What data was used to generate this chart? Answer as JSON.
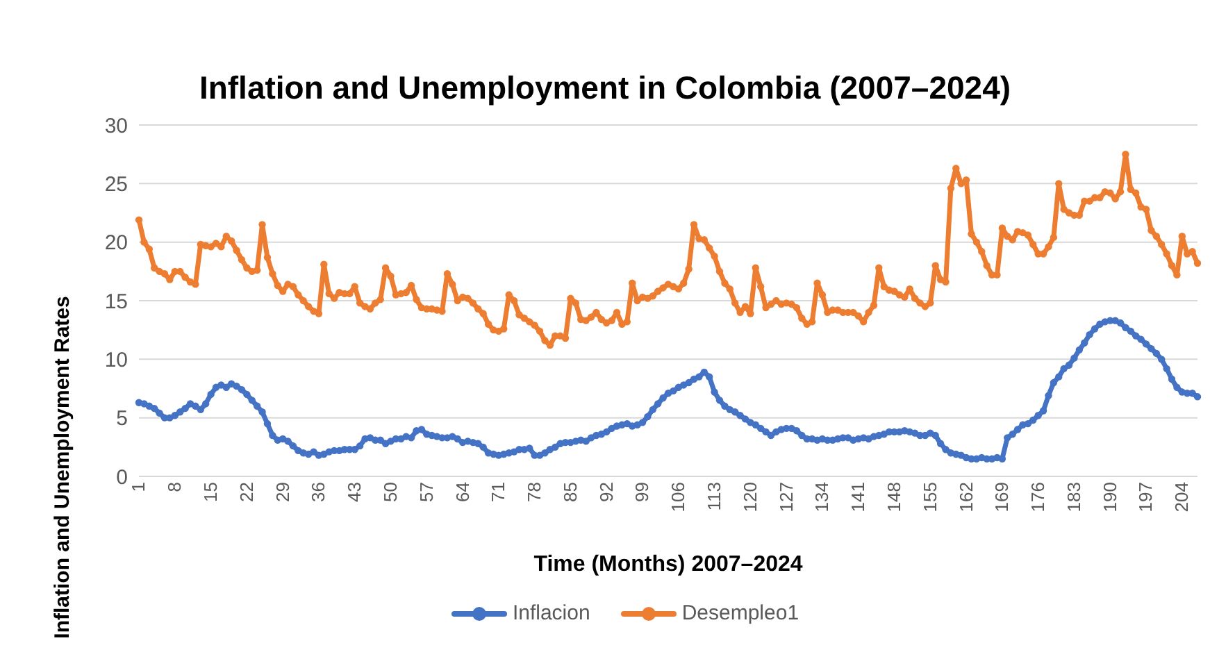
{
  "chart_data": {
    "type": "line",
    "title": "Inflation and Unemployment in Colombia (2007–2024)",
    "xlabel": "Time (Months) 2007–2024",
    "ylabel": "Inflation and Unemployment Rates",
    "categories": [
      "1",
      null,
      null,
      null,
      null,
      null,
      null,
      "8",
      null,
      null,
      null,
      null,
      null,
      null,
      "15",
      null,
      null,
      null,
      null,
      null,
      null,
      "22",
      null,
      null,
      null,
      null,
      null,
      null,
      "29",
      null,
      null,
      null,
      null,
      null,
      null,
      "36",
      null,
      null,
      null,
      null,
      null,
      null,
      "43",
      null,
      null,
      null,
      null,
      null,
      null,
      "50",
      null,
      null,
      null,
      null,
      null,
      null,
      "57",
      null,
      null,
      null,
      null,
      null,
      null,
      "64",
      null,
      null,
      null,
      null,
      null,
      null,
      "71",
      null,
      null,
      null,
      null,
      null,
      null,
      "78",
      null,
      null,
      null,
      null,
      null,
      null,
      "85",
      null,
      null,
      null,
      null,
      null,
      null,
      "92",
      null,
      null,
      null,
      null,
      null,
      null,
      "99",
      null,
      null,
      null,
      null,
      null,
      null,
      "106",
      null,
      null,
      null,
      null,
      null,
      null,
      "113",
      null,
      null,
      null,
      null,
      null,
      null,
      "120",
      null,
      null,
      null,
      null,
      null,
      null,
      "127",
      null,
      null,
      null,
      null,
      null,
      null,
      "134",
      null,
      null,
      null,
      null,
      null,
      null,
      "141",
      null,
      null,
      null,
      null,
      null,
      null,
      "148",
      null,
      null,
      null,
      null,
      null,
      null,
      "155",
      null,
      null,
      null,
      null,
      null,
      null,
      "162",
      null,
      null,
      null,
      null,
      null,
      null,
      "169",
      null,
      null,
      null,
      null,
      null,
      null,
      "176",
      null,
      null,
      null,
      null,
      null,
      null,
      "183",
      null,
      null,
      null,
      null,
      null,
      null,
      "190",
      null,
      null,
      null,
      null,
      null,
      null,
      "197",
      null,
      null,
      null,
      null,
      null,
      null,
      "204",
      null,
      null,
      null
    ],
    "series": [
      {
        "name": "Inflacion",
        "color": "#4472c4",
        "values": [
          6.3,
          6.2,
          6.0,
          5.8,
          5.4,
          5.0,
          5.0,
          5.2,
          5.5,
          5.8,
          6.2,
          6.0,
          5.7,
          6.2,
          7.0,
          7.6,
          7.8,
          7.6,
          7.9,
          7.7,
          7.4,
          7.0,
          6.5,
          6.0,
          5.5,
          4.5,
          3.5,
          3.1,
          3.2,
          3.0,
          2.6,
          2.2,
          2.0,
          1.9,
          2.1,
          1.8,
          1.9,
          2.1,
          2.2,
          2.2,
          2.3,
          2.3,
          2.3,
          2.6,
          3.2,
          3.3,
          3.1,
          3.1,
          2.8,
          3.0,
          3.2,
          3.2,
          3.4,
          3.3,
          3.9,
          4.0,
          3.6,
          3.5,
          3.4,
          3.3,
          3.3,
          3.4,
          3.2,
          2.9,
          3.0,
          2.9,
          2.8,
          2.5,
          2.0,
          1.9,
          1.8,
          1.9,
          2.0,
          2.1,
          2.3,
          2.3,
          2.4,
          1.8,
          1.8,
          2.0,
          2.3,
          2.5,
          2.8,
          2.9,
          2.9,
          3.0,
          3.1,
          3.0,
          3.3,
          3.5,
          3.6,
          3.8,
          4.1,
          4.3,
          4.4,
          4.5,
          4.3,
          4.4,
          4.6,
          5.1,
          5.7,
          6.2,
          6.7,
          7.1,
          7.3,
          7.6,
          7.8,
          8.0,
          8.3,
          8.5,
          8.9,
          8.5,
          7.2,
          6.5,
          6.0,
          5.7,
          5.5,
          5.2,
          4.9,
          4.6,
          4.4,
          4.1,
          3.8,
          3.5,
          3.8,
          4.0,
          4.1,
          4.1,
          3.9,
          3.5,
          3.2,
          3.2,
          3.1,
          3.2,
          3.1,
          3.1,
          3.2,
          3.3,
          3.3,
          3.1,
          3.2,
          3.3,
          3.2,
          3.4,
          3.5,
          3.6,
          3.8,
          3.8,
          3.8,
          3.9,
          3.8,
          3.7,
          3.5,
          3.5,
          3.7,
          3.5,
          2.8,
          2.3,
          2.0,
          1.9,
          1.8,
          1.6,
          1.5,
          1.5,
          1.6,
          1.5,
          1.5,
          1.6,
          1.5,
          3.3,
          3.6,
          4.0,
          4.4,
          4.5,
          4.8,
          5.2,
          5.6,
          6.9,
          8.0,
          8.5,
          9.2,
          9.5,
          10.1,
          10.8,
          11.4,
          12.1,
          12.6,
          13.0,
          13.2,
          13.3,
          13.3,
          13.1,
          12.7,
          12.4,
          12.0,
          11.7,
          11.3,
          10.9,
          10.5,
          10.0,
          9.2,
          8.3,
          7.6,
          7.2,
          7.1,
          7.1,
          6.8
        ]
      },
      {
        "name": "Desempleo1",
        "color": "#ed7d31",
        "values": [
          21.9,
          20.0,
          19.4,
          17.8,
          17.5,
          17.3,
          16.8,
          17.5,
          17.5,
          17.0,
          16.6,
          16.4,
          19.8,
          19.7,
          19.6,
          19.9,
          19.6,
          20.5,
          20.1,
          19.3,
          18.5,
          17.8,
          17.5,
          17.6,
          21.5,
          18.7,
          17.3,
          16.3,
          15.8,
          16.4,
          16.2,
          15.5,
          15.0,
          14.5,
          14.1,
          13.9,
          18.1,
          15.6,
          15.2,
          15.7,
          15.6,
          15.6,
          16.2,
          14.8,
          14.5,
          14.3,
          14.8,
          15.1,
          17.8,
          17.1,
          15.5,
          15.6,
          15.7,
          16.3,
          15.1,
          14.4,
          14.3,
          14.3,
          14.2,
          14.1,
          17.3,
          16.4,
          15.0,
          15.3,
          15.2,
          14.8,
          14.3,
          13.9,
          13.0,
          12.5,
          12.4,
          12.6,
          15.5,
          15.0,
          13.8,
          13.5,
          13.2,
          12.9,
          12.4,
          11.6,
          11.2,
          12.0,
          12.0,
          11.8,
          15.2,
          14.8,
          13.4,
          13.3,
          13.6,
          14.0,
          13.4,
          13.1,
          13.3,
          14.0,
          13.0,
          13.2,
          16.5,
          15.0,
          15.3,
          15.2,
          15.4,
          15.8,
          16.1,
          16.4,
          16.2,
          16.0,
          16.5,
          17.7,
          21.5,
          20.3,
          20.2,
          19.5,
          18.8,
          17.5,
          16.5,
          16.0,
          14.8,
          14.0,
          14.5,
          13.9,
          17.8,
          16.2,
          14.4,
          14.7,
          15.0,
          14.7,
          14.8,
          14.7,
          14.4,
          13.5,
          13.0,
          13.2,
          16.5,
          15.5,
          14.0,
          14.2,
          14.2,
          14.0,
          14.0,
          14.0,
          13.7,
          13.2,
          14.0,
          14.6,
          17.8,
          16.2,
          15.9,
          15.8,
          15.5,
          15.3,
          16.0,
          15.2,
          14.8,
          14.5,
          14.8,
          18.0,
          16.8,
          16.6,
          24.6,
          26.3,
          25.0,
          25.3,
          20.7,
          20.0,
          19.2,
          18.0,
          17.2,
          17.2,
          21.2,
          20.5,
          20.2,
          20.9,
          20.8,
          20.6,
          19.8,
          19.0,
          19.0,
          19.6,
          20.4,
          25.0,
          22.8,
          22.5,
          22.3,
          22.3,
          23.5,
          23.5,
          23.8,
          23.8,
          24.3,
          24.2,
          23.7,
          24.3,
          27.5,
          24.5,
          24.2,
          23.0,
          22.8,
          21.0,
          20.5,
          19.8,
          19.0,
          18.0,
          17.2,
          20.5,
          19.0,
          19.2,
          18.2
        ]
      }
    ],
    "ylim": [
      0,
      30
    ],
    "yticks": [
      0,
      5,
      10,
      15,
      20,
      25,
      30
    ],
    "grid": "y",
    "legend": "bottom",
    "marker": "circle",
    "line_style": "solid"
  }
}
